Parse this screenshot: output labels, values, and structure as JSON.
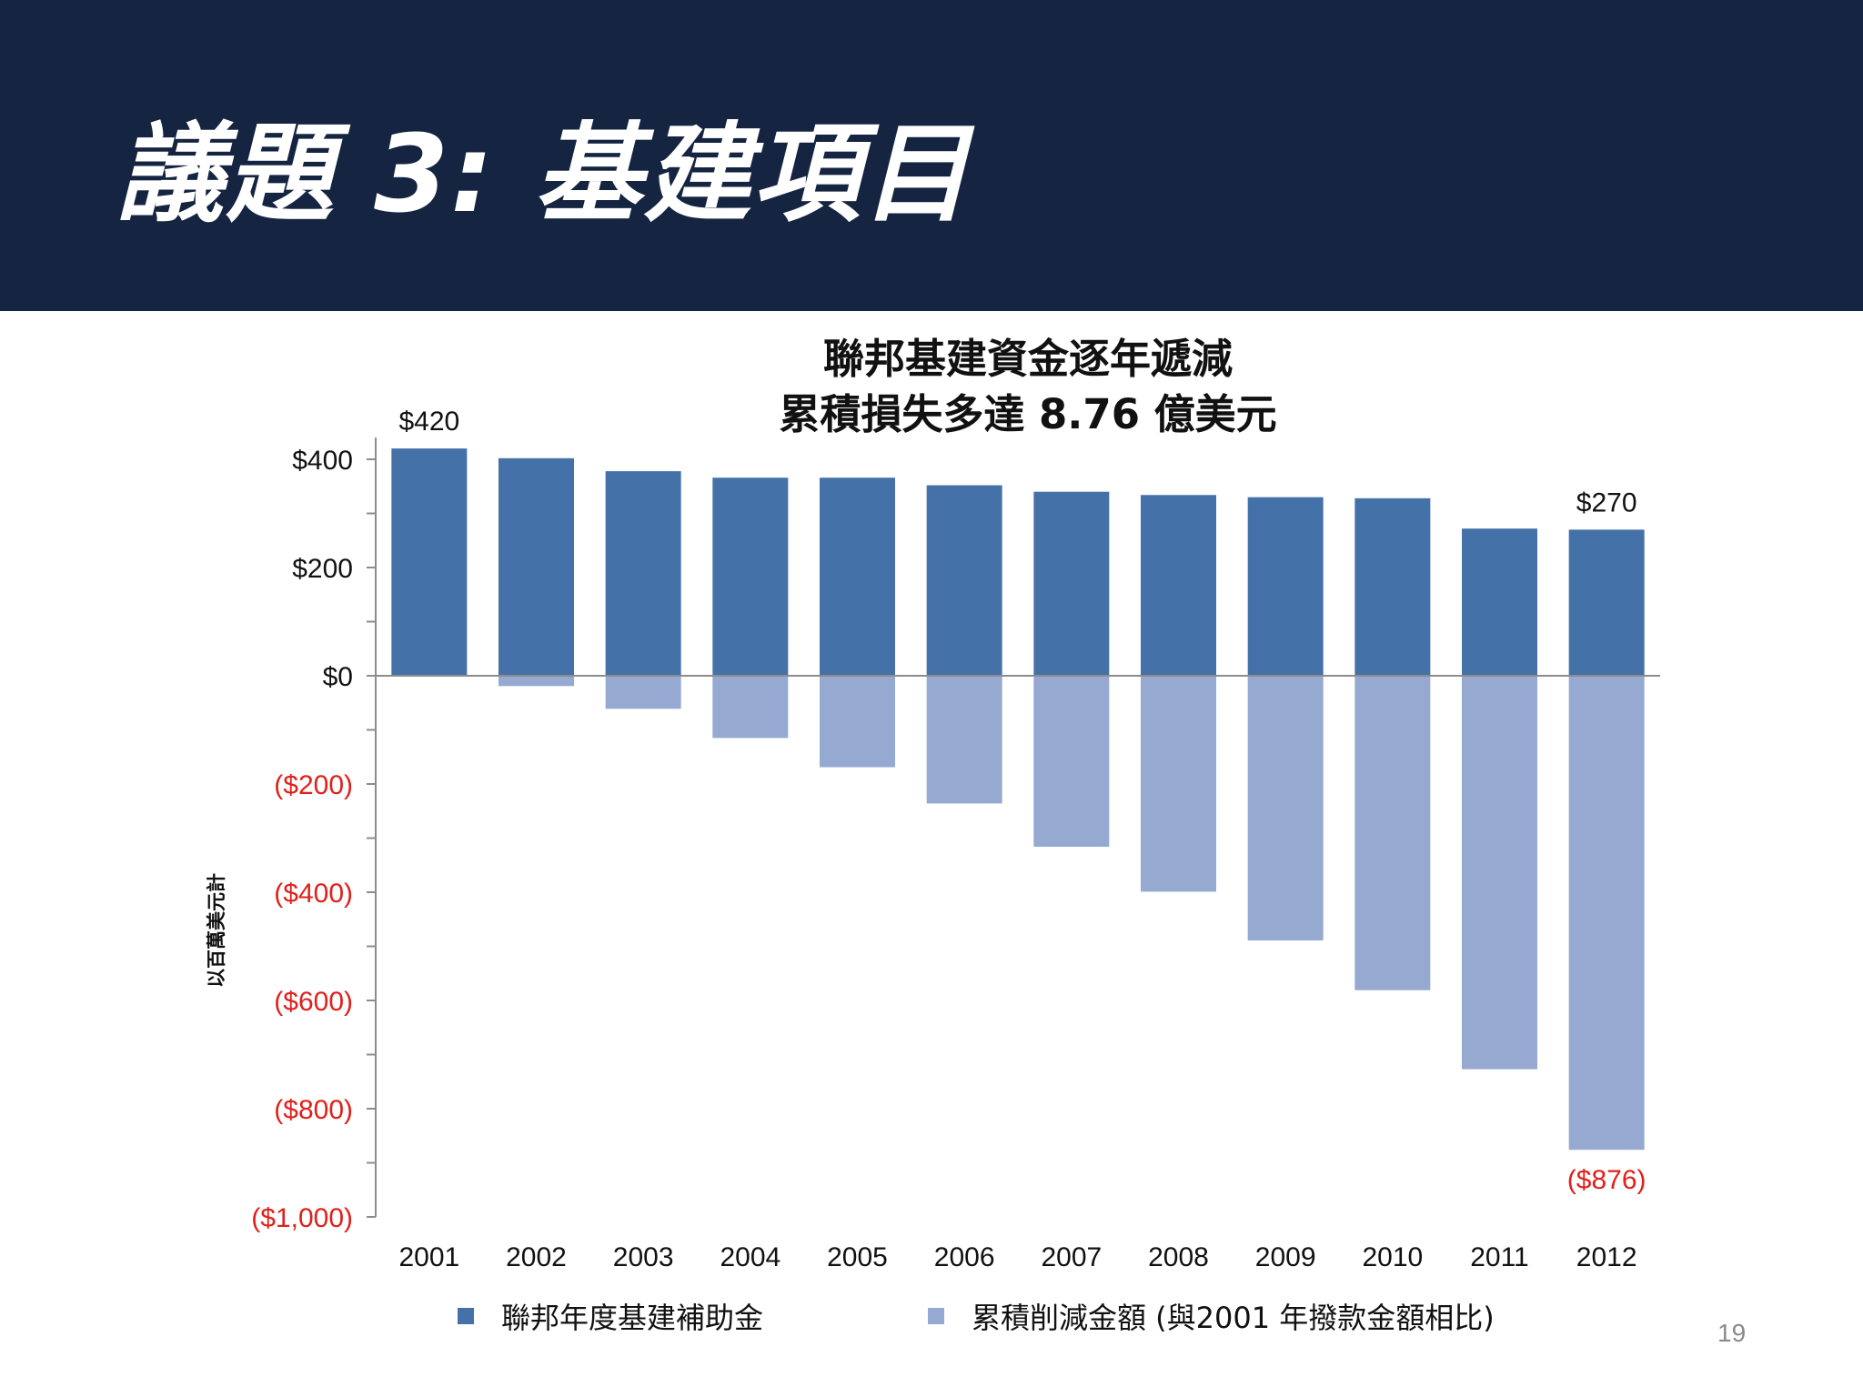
{
  "slide": {
    "title": "議題 3: 基建項目",
    "page_number": "19"
  },
  "colors": {
    "header_bg": "#142441",
    "annual_grant": "#4472a8",
    "cumulative_loss": "#95a9d1",
    "negative_tick": "#e0201b"
  },
  "chart_data": {
    "type": "bar",
    "title_lines": [
      "聯邦基建資金逐年遞減",
      "累積損失多達 8.76 億美元"
    ],
    "ylabel": "以百萬美元計",
    "categories": [
      "2001",
      "2002",
      "2003",
      "2004",
      "2005",
      "2006",
      "2007",
      "2008",
      "2009",
      "2010",
      "2011",
      "2012"
    ],
    "series": [
      {
        "name": "聯邦年度基建補助金",
        "color": "#4472a8",
        "values": [
          420,
          402,
          378,
          366,
          366,
          352,
          340,
          334,
          330,
          328,
          272,
          270
        ]
      },
      {
        "name": "累積削減金額 (與2001 年撥款金額相比)",
        "color": "#95a9d1",
        "values": [
          0,
          -19,
          -61,
          -115,
          -169,
          -236,
          -316,
          -399,
          -489,
          -581,
          -727,
          -876
        ]
      }
    ],
    "ylim": [
      -1000,
      420
    ],
    "y_ticks": [
      {
        "value": 400,
        "label": "$400"
      },
      {
        "value": 200,
        "label": "$200"
      },
      {
        "value": 0,
        "label": "$0"
      },
      {
        "value": -200,
        "label": "($200)"
      },
      {
        "value": -400,
        "label": "($400)"
      },
      {
        "value": -600,
        "label": "($600)"
      },
      {
        "value": -800,
        "label": "($800)"
      },
      {
        "value": -1000,
        "label": "($1,000)"
      }
    ],
    "data_labels": [
      {
        "category": "2001",
        "value": 420,
        "label": "$420"
      },
      {
        "category": "2012",
        "value": 270,
        "label": "$270"
      },
      {
        "category": "2012",
        "value": -876,
        "label": "($876)"
      }
    ],
    "legend_position": "bottom"
  }
}
